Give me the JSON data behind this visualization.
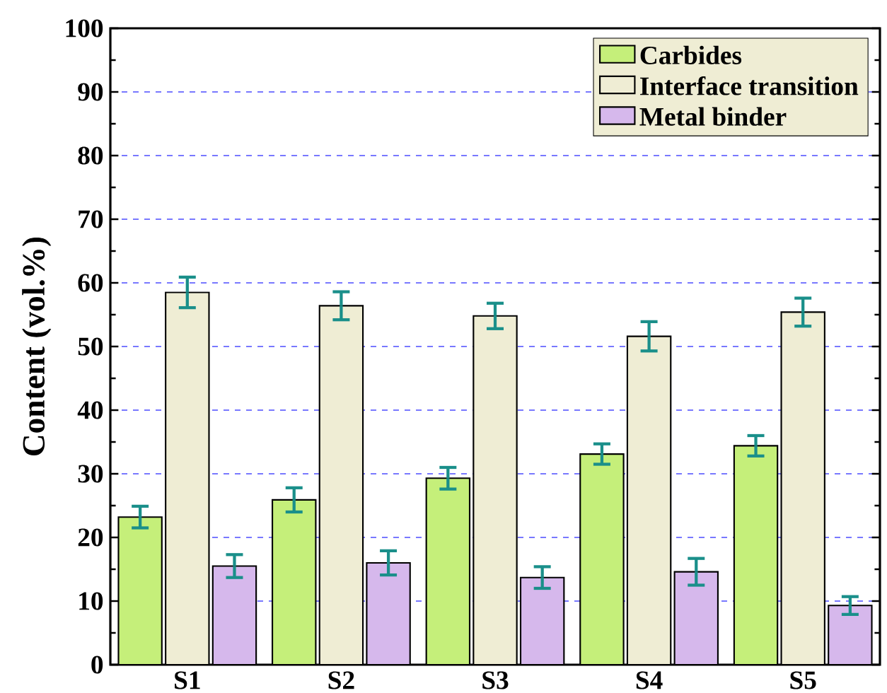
{
  "chart_data": {
    "type": "bar",
    "ylabel": "Content (vol.%)",
    "categories": [
      "S1",
      "S2",
      "S3",
      "S4",
      "S5"
    ],
    "series": [
      {
        "name": "Carbides",
        "color": "#c5ef7a",
        "values": [
          23.2,
          25.9,
          29.3,
          33.1,
          34.4
        ],
        "errors": [
          1.7,
          1.9,
          1.7,
          1.6,
          1.6
        ]
      },
      {
        "name": "Interface transition",
        "color": "#efedd4",
        "values": [
          58.5,
          56.4,
          54.8,
          51.6,
          55.4
        ],
        "errors": [
          2.4,
          2.2,
          2.0,
          2.3,
          2.2
        ]
      },
      {
        "name": "Metal binder",
        "color": "#d6b8ec",
        "values": [
          15.5,
          16.0,
          13.7,
          14.6,
          9.3
        ],
        "errors": [
          1.8,
          1.9,
          1.7,
          2.1,
          1.4
        ]
      }
    ],
    "ylim": [
      0,
      100
    ],
    "yticks": [
      0,
      10,
      20,
      30,
      40,
      50,
      60,
      70,
      80,
      90,
      100
    ],
    "grid": "y",
    "legend": "top right"
  }
}
